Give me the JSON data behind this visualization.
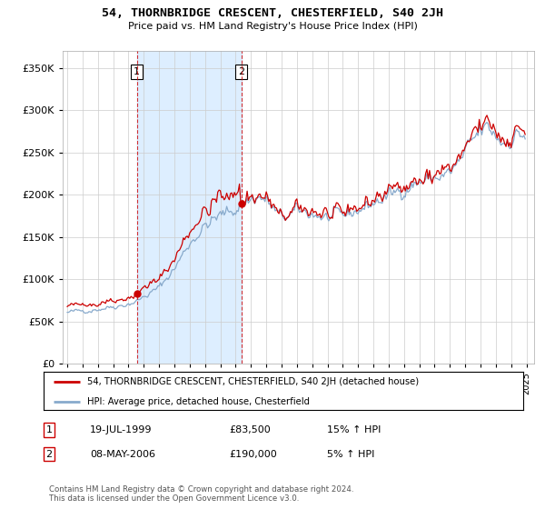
{
  "title": "54, THORNBRIDGE CRESCENT, CHESTERFIELD, S40 2JH",
  "subtitle": "Price paid vs. HM Land Registry's House Price Index (HPI)",
  "legend_line1": "54, THORNBRIDGE CRESCENT, CHESTERFIELD, S40 2JH (detached house)",
  "legend_line2": "HPI: Average price, detached house, Chesterfield",
  "transaction1_date": "19-JUL-1999",
  "transaction1_price": "£83,500",
  "transaction1_hpi": "15% ↑ HPI",
  "transaction2_date": "08-MAY-2006",
  "transaction2_price": "£190,000",
  "transaction2_hpi": "5% ↑ HPI",
  "footer": "Contains HM Land Registry data © Crown copyright and database right 2024.\nThis data is licensed under the Open Government Licence v3.0.",
  "ylim": [
    0,
    370000
  ],
  "yticks": [
    0,
    50000,
    100000,
    150000,
    200000,
    250000,
    300000,
    350000
  ],
  "red_color": "#cc0000",
  "blue_color": "#88aacc",
  "fill_color": "#ddeeff",
  "marker1_x": 1999.54,
  "marker1_y": 83500,
  "marker2_x": 2006.37,
  "marker2_y": 190000,
  "vline1_x": 1999.54,
  "vline2_x": 2006.37,
  "xlim_left": 1994.7,
  "xlim_right": 2025.5
}
